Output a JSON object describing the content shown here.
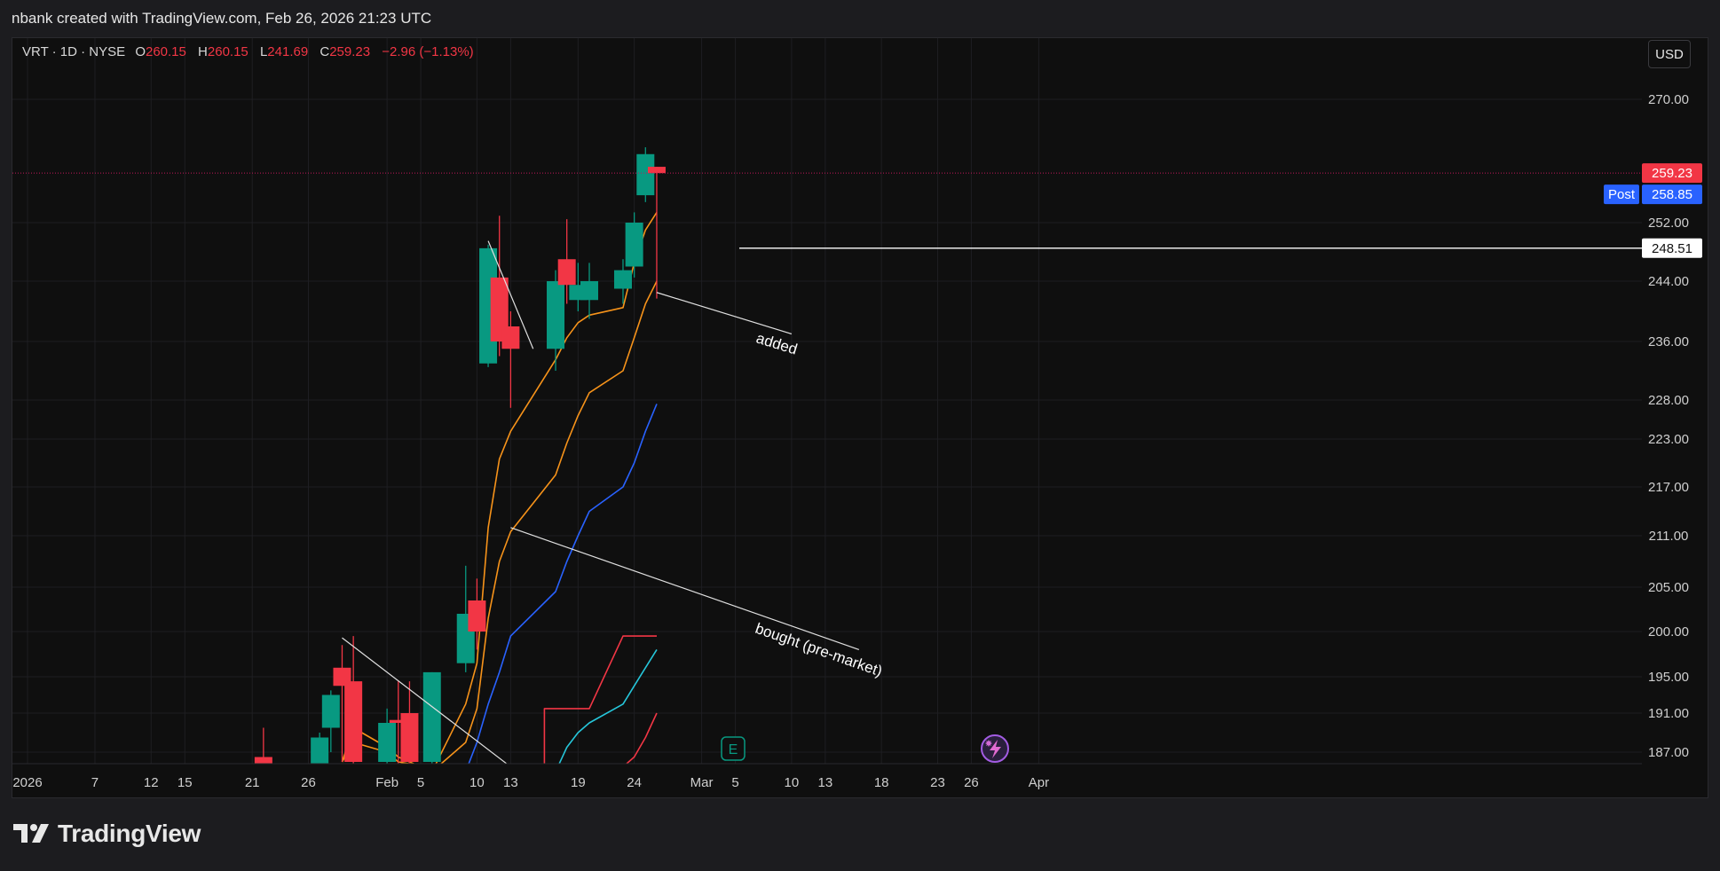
{
  "header": {
    "credit": "nbank created with TradingView.com, Feb 26, 2026 21:23 UTC"
  },
  "legend": {
    "symbol": "VRT · 1D · NYSE",
    "o_label": "O",
    "open": "260.15",
    "h_label": "H",
    "high": "260.15",
    "l_label": "L",
    "low": "241.69",
    "c_label": "C",
    "close": "259.23",
    "change": "−2.96 (−1.13%)"
  },
  "axis": {
    "currency": "USD"
  },
  "markers": {
    "earnings": "E"
  },
  "footer": {
    "brand": "TradingView"
  },
  "colors": {
    "up": "#089981",
    "down": "#f23645",
    "ema_fast": "#f7931a",
    "ema_slow": "#2962ff",
    "ma_cyan": "#26c6da",
    "ma_red": "#f23645",
    "grid": "#1e1e22",
    "axis_text": "#cfcfcf",
    "post": "#2962ff",
    "drawing": "#e0e0e0"
  },
  "chart_data": {
    "type": "candlestick",
    "symbol": "VRT",
    "interval": "1D",
    "exchange": "NYSE",
    "y_ticks": [
      "187.00",
      "191.00",
      "195.00",
      "200.00",
      "205.00",
      "211.00",
      "217.00",
      "223.00",
      "228.00",
      "236.00",
      "244.00",
      "252.00",
      "270.00"
    ],
    "x_ticks": [
      {
        "label": "2026",
        "date": "2026-01-01"
      },
      {
        "label": "7",
        "date": "2026-01-07"
      },
      {
        "label": "12",
        "date": "2026-01-12"
      },
      {
        "label": "15",
        "date": "2026-01-15"
      },
      {
        "label": "21",
        "date": "2026-01-21"
      },
      {
        "label": "26",
        "date": "2026-01-26"
      },
      {
        "label": "Feb",
        "date": "2026-02-02"
      },
      {
        "label": "5",
        "date": "2026-02-05"
      },
      {
        "label": "10",
        "date": "2026-02-10"
      },
      {
        "label": "13",
        "date": "2026-02-13"
      },
      {
        "label": "19",
        "date": "2026-02-19"
      },
      {
        "label": "24",
        "date": "2026-02-24"
      },
      {
        "label": "Mar",
        "date": "2026-03-02"
      },
      {
        "label": "5",
        "date": "2026-03-05"
      },
      {
        "label": "10",
        "date": "2026-03-10"
      },
      {
        "label": "13",
        "date": "2026-03-13"
      },
      {
        "label": "18",
        "date": "2026-03-18"
      },
      {
        "label": "23",
        "date": "2026-03-23"
      },
      {
        "label": "26",
        "date": "2026-03-26"
      },
      {
        "label": "Apr",
        "date": "2026-04-01"
      }
    ],
    "candles": [
      {
        "date": "2026-01-22",
        "open": 186.5,
        "high": 189.5,
        "low": 185.0,
        "close": 185.5
      },
      {
        "date": "2026-01-27",
        "open": 185.0,
        "high": 189.0,
        "low": 183.0,
        "close": 188.5
      },
      {
        "date": "2026-01-28",
        "open": 189.5,
        "high": 193.5,
        "low": 187.0,
        "close": 193.0
      },
      {
        "date": "2026-01-29",
        "open": 196.0,
        "high": 198.5,
        "low": 186.0,
        "close": 194.0
      },
      {
        "date": "2026-01-30",
        "open": 194.5,
        "high": 199.5,
        "low": 185.0,
        "close": 186.0
      },
      {
        "date": "2026-02-02",
        "open": 186.0,
        "high": 191.5,
        "low": 183.0,
        "close": 190.0
      },
      {
        "date": "2026-02-03",
        "open": 190.3,
        "high": 194.5,
        "low": 184.0,
        "close": 190.0
      },
      {
        "date": "2026-02-04",
        "open": 191.0,
        "high": 194.5,
        "low": 185.0,
        "close": 186.0
      },
      {
        "date": "2026-02-06",
        "open": 186.0,
        "high": 195.5,
        "low": 185.5,
        "close": 195.5
      },
      {
        "date": "2026-02-09",
        "open": 196.5,
        "high": 207.5,
        "low": 195.5,
        "close": 202.0
      },
      {
        "date": "2026-02-10",
        "open": 203.5,
        "high": 206.0,
        "low": 198.0,
        "close": 200.0
      },
      {
        "date": "2026-02-11",
        "open": 233.0,
        "high": 249.0,
        "low": 232.5,
        "close": 248.5
      },
      {
        "date": "2026-02-12",
        "open": 244.5,
        "high": 253.0,
        "low": 234.0,
        "close": 236.0
      },
      {
        "date": "2026-02-13",
        "open": 238.0,
        "high": 240.0,
        "low": 227.0,
        "close": 235.0
      },
      {
        "date": "2026-02-17",
        "open": 235.0,
        "high": 245.5,
        "low": 232.0,
        "close": 244.0
      },
      {
        "date": "2026-02-18",
        "open": 247.0,
        "high": 252.5,
        "low": 241.0,
        "close": 243.5
      },
      {
        "date": "2026-02-19",
        "open": 241.5,
        "high": 246.5,
        "low": 240.0,
        "close": 243.5
      },
      {
        "date": "2026-02-20",
        "open": 241.5,
        "high": 246.5,
        "low": 239.0,
        "close": 244.0
      },
      {
        "date": "2026-02-23",
        "open": 243.0,
        "high": 247.0,
        "low": 241.0,
        "close": 245.5
      },
      {
        "date": "2026-02-24",
        "open": 246.0,
        "high": 253.5,
        "low": 244.5,
        "close": 252.0
      },
      {
        "date": "2026-02-25",
        "open": 256.0,
        "high": 263.0,
        "low": 255.0,
        "close": 262.0
      },
      {
        "date": "2026-02-26",
        "open": 260.15,
        "high": 260.15,
        "low": 241.69,
        "close": 259.23
      }
    ],
    "series": [
      {
        "color": "#f7931a",
        "points": [
          [
            "2026-01-29",
            186.0
          ],
          [
            "2026-01-30",
            188.0
          ],
          [
            "2026-02-02",
            187.0
          ],
          [
            "2026-02-03",
            186.0
          ],
          [
            "2026-02-04",
            185.8
          ],
          [
            "2026-02-06",
            185.0
          ],
          [
            "2026-02-09",
            192.0
          ],
          [
            "2026-02-10",
            196.5
          ],
          [
            "2026-02-11",
            212.0
          ],
          [
            "2026-02-12",
            220.5
          ],
          [
            "2026-02-13",
            224.0
          ],
          [
            "2026-02-17",
            233.5
          ],
          [
            "2026-02-18",
            236.5
          ],
          [
            "2026-02-19",
            238.5
          ],
          [
            "2026-02-20",
            239.5
          ],
          [
            "2026-02-23",
            240.5
          ],
          [
            "2026-02-24",
            246.5
          ],
          [
            "2026-02-25",
            251.0
          ],
          [
            "2026-02-26",
            253.5
          ]
        ]
      },
      {
        "color": "#f7931a",
        "points": [
          [
            "2026-01-29",
            186.0
          ],
          [
            "2026-01-30",
            189.5
          ],
          [
            "2026-02-02",
            187.5
          ],
          [
            "2026-02-03",
            186.5
          ],
          [
            "2026-02-04",
            186.0
          ],
          [
            "2026-02-06",
            185.0
          ],
          [
            "2026-02-09",
            188.0
          ],
          [
            "2026-02-10",
            191.5
          ],
          [
            "2026-02-11",
            201.5
          ],
          [
            "2026-02-12",
            208.0
          ],
          [
            "2026-02-13",
            211.5
          ],
          [
            "2026-02-17",
            218.5
          ],
          [
            "2026-02-18",
            222.5
          ],
          [
            "2026-02-19",
            226.0
          ],
          [
            "2026-02-20",
            229.0
          ],
          [
            "2026-02-23",
            232.0
          ],
          [
            "2026-02-24",
            236.5
          ],
          [
            "2026-02-25",
            241.0
          ],
          [
            "2026-02-26",
            244.0
          ]
        ]
      },
      {
        "color": "#2962ff",
        "points": [
          [
            "2026-02-09",
            185.0
          ],
          [
            "2026-02-10",
            188.0
          ],
          [
            "2026-02-11",
            192.0
          ],
          [
            "2026-02-12",
            195.5
          ],
          [
            "2026-02-13",
            199.5
          ],
          [
            "2026-02-17",
            204.5
          ],
          [
            "2026-02-18",
            208.0
          ],
          [
            "2026-02-19",
            211.0
          ],
          [
            "2026-02-20",
            214.0
          ],
          [
            "2026-02-23",
            217.0
          ],
          [
            "2026-02-24",
            220.0
          ],
          [
            "2026-02-25",
            224.0
          ],
          [
            "2026-02-26",
            227.5
          ]
        ]
      },
      {
        "color": "#26c6da",
        "points": [
          [
            "2026-02-17",
            185.0
          ],
          [
            "2026-02-18",
            187.5
          ],
          [
            "2026-02-19",
            189.0
          ],
          [
            "2026-02-20",
            190.0
          ],
          [
            "2026-02-23",
            192.0
          ],
          [
            "2026-02-24",
            194.0
          ],
          [
            "2026-02-25",
            196.0
          ],
          [
            "2026-02-26",
            198.0
          ]
        ]
      },
      {
        "color": "#f23645",
        "points": [
          [
            "2026-02-23",
            185.5
          ],
          [
            "2026-02-24",
            186.5
          ],
          [
            "2026-02-25",
            188.5
          ],
          [
            "2026-02-26",
            191.0
          ]
        ]
      },
      {
        "color": "#f23645",
        "step": true,
        "points": [
          [
            "2026-02-16",
            185.0
          ],
          [
            "2026-02-16",
            191.5
          ],
          [
            "2026-02-20",
            191.5
          ],
          [
            "2026-02-23",
            199.5
          ],
          [
            "2026-02-26",
            199.5
          ]
        ]
      }
    ],
    "price_labels": [
      {
        "value": 259.23,
        "text": "259.23",
        "color": "#f23645"
      },
      {
        "value": 258.85,
        "text": "258.85",
        "color": "#2962ff",
        "tag": "Post"
      },
      {
        "value": 248.51,
        "text": "248.51",
        "color": "#ffffff",
        "text_color": "#111111"
      }
    ],
    "horizontal_line": {
      "value": 248.51
    },
    "drawings": [
      {
        "type": "trendline",
        "from": [
          "2026-01-29",
          199.3
        ],
        "to": [
          "2026-02-13",
          185.5
        ]
      },
      {
        "type": "trendline",
        "from": [
          "2026-02-11",
          249.5
        ],
        "to": [
          "2026-02-15",
          235.0
        ]
      },
      {
        "type": "trendline",
        "from": [
          "2026-02-13",
          212.0
        ],
        "to": [
          "2026-03-16",
          198.0
        ],
        "text": "bought (pre-market)"
      },
      {
        "type": "trendline",
        "from": [
          "2026-02-26",
          242.5
        ],
        "to": [
          "2026-03-10",
          237.0
        ],
        "text": "added"
      }
    ]
  }
}
